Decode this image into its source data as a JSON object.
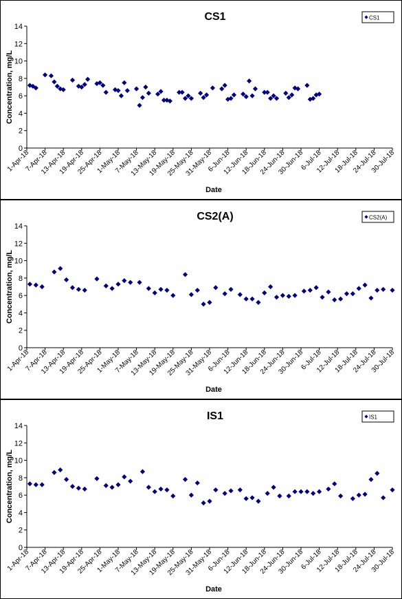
{
  "chart_data": [
    {
      "type": "scatter",
      "title": "CS1",
      "xlabel": "Date",
      "ylabel": "Concentration, mg/L",
      "ylim": [
        0,
        14
      ],
      "yticks": [
        0,
        2,
        4,
        6,
        8,
        10,
        12,
        14
      ],
      "xlim": [
        "1-Apr-18",
        "30-Jul-18"
      ],
      "xtick_labels": [
        "1-Apr-18",
        "7-Apr-18",
        "13-Apr-18",
        "19-Apr-18",
        "25-Apr-18",
        "1-May-18",
        "7-May-18",
        "13-May-18",
        "19-May-18",
        "25-May-18",
        "31-May-18",
        "6-Jun-18",
        "12-Jun-18",
        "18-Jun-18",
        "24-Jun-18",
        "30-Jun-18",
        "6-Jul-18",
        "12-Jul-18",
        "18-Jul-18",
        "24-Jul-18",
        "30-Jul-18"
      ],
      "legend_position": "top-right",
      "marker": "diamond",
      "color": "#000080",
      "grid": false,
      "series": [
        {
          "name": "CS1",
          "x": [
            "2018-04-02",
            "2018-04-03",
            "2018-04-04",
            "2018-04-07",
            "2018-04-09",
            "2018-04-10",
            "2018-04-11",
            "2018-04-12",
            "2018-04-13",
            "2018-04-16",
            "2018-04-18",
            "2018-04-19",
            "2018-04-20",
            "2018-04-21",
            "2018-04-24",
            "2018-04-25",
            "2018-04-26",
            "2018-04-27",
            "2018-04-30",
            "2018-05-01",
            "2018-05-02",
            "2018-05-03",
            "2018-05-04",
            "2018-05-07",
            "2018-05-08",
            "2018-05-09",
            "2018-05-10",
            "2018-05-11",
            "2018-05-14",
            "2018-05-15",
            "2018-05-16",
            "2018-05-17",
            "2018-05-18",
            "2018-05-21",
            "2018-05-22",
            "2018-05-23",
            "2018-05-24",
            "2018-05-25",
            "2018-05-28",
            "2018-05-29",
            "2018-05-30",
            "2018-06-01",
            "2018-06-04",
            "2018-06-05",
            "2018-06-06",
            "2018-06-07",
            "2018-06-08",
            "2018-06-11",
            "2018-06-12",
            "2018-06-13",
            "2018-06-14",
            "2018-06-15",
            "2018-06-18",
            "2018-06-19",
            "2018-06-20",
            "2018-06-21",
            "2018-06-22",
            "2018-06-25",
            "2018-06-26",
            "2018-06-27",
            "2018-06-28",
            "2018-06-29",
            "2018-07-02",
            "2018-07-03",
            "2018-07-04",
            "2018-07-05",
            "2018-07-06"
          ],
          "y": [
            7.2,
            7.1,
            6.9,
            8.4,
            8.3,
            7.6,
            7.1,
            6.8,
            6.7,
            7.8,
            7.1,
            7.0,
            7.3,
            7.9,
            7.4,
            7.5,
            7.2,
            6.4,
            6.7,
            6.6,
            6.0,
            7.5,
            6.6,
            6.8,
            4.9,
            5.8,
            7.0,
            6.3,
            6.2,
            6.5,
            5.5,
            5.5,
            5.4,
            6.4,
            6.4,
            5.7,
            6.0,
            5.7,
            6.3,
            5.8,
            6.1,
            6.9,
            6.8,
            7.2,
            5.6,
            5.7,
            6.1,
            6.2,
            5.9,
            7.7,
            6.0,
            6.8,
            6.4,
            6.4,
            5.7,
            6.0,
            5.7,
            6.3,
            5.8,
            6.1,
            6.9,
            6.8,
            7.2,
            5.6,
            5.7,
            6.1,
            6.2
          ]
        }
      ]
    },
    {
      "type": "scatter",
      "title": "CS2(A)",
      "xlabel": "Date",
      "ylabel": "Concentration, mg/L",
      "ylim": [
        0,
        14
      ],
      "yticks": [
        0,
        2,
        4,
        6,
        8,
        10,
        12,
        14
      ],
      "xlim": [
        "1-Apr-18",
        "30-Jul-18"
      ],
      "xtick_labels": [
        "1-Apr-18",
        "7-Apr-18",
        "13-Apr-18",
        "19-Apr-18",
        "25-Apr-18",
        "1-May-18",
        "7-May-18",
        "13-May-18",
        "19-May-18",
        "25-May-18",
        "31-May-18",
        "6-Jun-18",
        "12-Jun-18",
        "18-Jun-18",
        "24-Jun-18",
        "30-Jun-18",
        "6-Jul-18",
        "12-Jul-18",
        "18-Jul-18",
        "24-Jul-18",
        "30-Jul-18"
      ],
      "legend_position": "top-right",
      "marker": "diamond",
      "color": "#000080",
      "grid": false,
      "series": [
        {
          "name": "CS2(A)",
          "x": [
            "2018-04-02",
            "2018-04-04",
            "2018-04-06",
            "2018-04-10",
            "2018-04-12",
            "2018-04-14",
            "2018-04-16",
            "2018-04-18",
            "2018-04-20",
            "2018-04-24",
            "2018-04-27",
            "2018-04-29",
            "2018-05-01",
            "2018-05-03",
            "2018-05-05",
            "2018-05-08",
            "2018-05-11",
            "2018-05-13",
            "2018-05-15",
            "2018-05-17",
            "2018-05-19",
            "2018-05-23",
            "2018-05-25",
            "2018-05-27",
            "2018-05-29",
            "2018-05-31",
            "2018-06-02",
            "2018-06-05",
            "2018-06-07",
            "2018-06-10",
            "2018-06-12",
            "2018-06-14",
            "2018-06-16",
            "2018-06-18",
            "2018-06-20",
            "2018-06-22",
            "2018-06-24",
            "2018-06-26",
            "2018-06-28",
            "2018-07-01",
            "2018-07-03",
            "2018-07-05",
            "2018-07-07",
            "2018-07-09",
            "2018-07-11",
            "2018-07-13",
            "2018-07-15",
            "2018-07-17",
            "2018-07-19",
            "2018-07-21",
            "2018-07-23",
            "2018-07-25",
            "2018-07-27",
            "2018-07-30"
          ],
          "y": [
            7.3,
            7.2,
            7.0,
            8.7,
            9.1,
            7.8,
            6.9,
            6.7,
            6.6,
            7.9,
            7.1,
            6.8,
            7.3,
            7.7,
            7.5,
            7.5,
            6.8,
            6.3,
            6.7,
            6.6,
            6.0,
            8.4,
            6.1,
            6.6,
            5.0,
            5.2,
            6.9,
            6.2,
            6.7,
            6.1,
            5.6,
            5.6,
            5.2,
            6.3,
            7.0,
            5.8,
            6.0,
            5.9,
            6.0,
            6.5,
            6.6,
            6.9,
            5.8,
            6.4,
            5.5,
            5.6,
            6.2,
            6.2,
            6.8,
            7.2,
            5.7,
            6.6,
            6.7,
            6.6
          ]
        }
      ]
    },
    {
      "type": "scatter",
      "title": "IS1",
      "xlabel": "Date",
      "ylabel": "Concentration, mg/L",
      "ylim": [
        0,
        14
      ],
      "yticks": [
        0,
        2,
        4,
        6,
        8,
        10,
        12,
        14
      ],
      "xlim": [
        "1-Apr-18",
        "30-Jul-18"
      ],
      "xtick_labels": [
        "1-Apr-18",
        "7-Apr-18",
        "13-Apr-18",
        "19-Apr-18",
        "25-Apr-18",
        "1-May-18",
        "7-May-18",
        "13-May-18",
        "19-May-18",
        "25-May-18",
        "31-May-18",
        "6-Jun-18",
        "12-Jun-18",
        "18-Jun-18",
        "24-Jun-18",
        "30-Jun-18",
        "6-Jul-18",
        "12-Jul-18",
        "18-Jul-18",
        "24-Jul-18",
        "30-Jul-18"
      ],
      "legend_position": "top-right",
      "marker": "diamond",
      "color": "#000080",
      "grid": false,
      "series": [
        {
          "name": "IS1",
          "x": [
            "2018-04-02",
            "2018-04-04",
            "2018-04-06",
            "2018-04-10",
            "2018-04-12",
            "2018-04-14",
            "2018-04-16",
            "2018-04-18",
            "2018-04-20",
            "2018-04-24",
            "2018-04-27",
            "2018-04-29",
            "2018-05-01",
            "2018-05-03",
            "2018-05-05",
            "2018-05-09",
            "2018-05-11",
            "2018-05-13",
            "2018-05-15",
            "2018-05-17",
            "2018-05-19",
            "2018-05-23",
            "2018-05-25",
            "2018-05-27",
            "2018-05-29",
            "2018-05-31",
            "2018-06-02",
            "2018-06-05",
            "2018-06-07",
            "2018-06-10",
            "2018-06-12",
            "2018-06-14",
            "2018-06-16",
            "2018-06-19",
            "2018-06-21",
            "2018-06-23",
            "2018-06-26",
            "2018-06-28",
            "2018-06-30",
            "2018-07-02",
            "2018-07-04",
            "2018-07-06",
            "2018-07-09",
            "2018-07-11",
            "2018-07-13",
            "2018-07-17",
            "2018-07-19",
            "2018-07-21",
            "2018-07-23",
            "2018-07-25",
            "2018-07-27",
            "2018-07-30"
          ],
          "y": [
            7.3,
            7.2,
            7.2,
            8.6,
            8.9,
            7.8,
            7.0,
            6.8,
            6.7,
            7.9,
            7.1,
            6.9,
            7.2,
            8.1,
            7.6,
            8.7,
            6.9,
            6.4,
            6.7,
            6.6,
            5.9,
            7.8,
            6.0,
            7.4,
            5.1,
            5.3,
            6.6,
            6.2,
            6.5,
            6.6,
            5.6,
            5.7,
            5.3,
            6.2,
            6.9,
            5.9,
            5.9,
            6.4,
            6.4,
            6.4,
            6.2,
            6.4,
            6.7,
            7.3,
            5.9,
            5.6,
            6.0,
            6.1,
            7.8,
            8.5,
            5.7,
            6.6
          ]
        }
      ]
    }
  ]
}
